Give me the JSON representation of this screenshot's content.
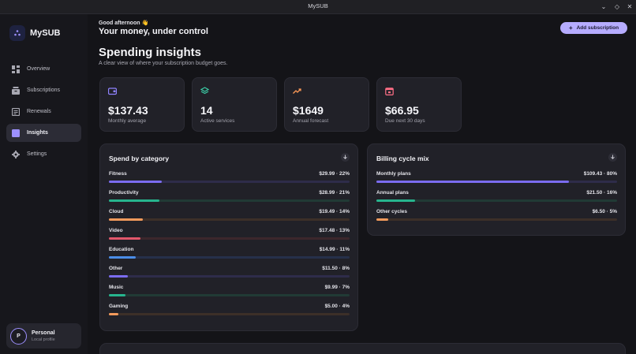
{
  "window": {
    "title": "MySUB"
  },
  "brand": {
    "name": "MySUB"
  },
  "nav": [
    {
      "label": "Overview",
      "icon": "grid-icon",
      "active": false
    },
    {
      "label": "Subscriptions",
      "icon": "box-icon",
      "active": false
    },
    {
      "label": "Renewals",
      "icon": "calendar-list-icon",
      "active": false
    },
    {
      "label": "Insights",
      "icon": "bar-chart-icon",
      "active": true
    },
    {
      "label": "Settings",
      "icon": "gear-icon",
      "active": false
    }
  ],
  "profile": {
    "initial": "P",
    "name": "Personal",
    "subtitle": "Local profile"
  },
  "header": {
    "greeting": "Good afternoon 👋",
    "tagline": "Your money, under control",
    "add_button": "Add subscription"
  },
  "page": {
    "title": "Spending insights",
    "subtitle": "A clear view of where your subscription budget goes."
  },
  "stats": [
    {
      "value": "$137.43",
      "label": "Monthly average",
      "icon": "wallet-icon",
      "color": "#8f82ff"
    },
    {
      "value": "14",
      "label": "Active services",
      "icon": "layers-icon",
      "color": "#3ccfa8"
    },
    {
      "value": "$1649",
      "label": "Annual forecast",
      "icon": "trend-up-icon",
      "color": "#ff9a57"
    },
    {
      "value": "$66.95",
      "label": "Due next 30 days",
      "icon": "calendar-icon",
      "color": "#ff6f86"
    }
  ],
  "category_card": {
    "title": "Spend by category",
    "rows": [
      {
        "name": "Fitness",
        "value": "$29.99 · 22%",
        "pct": 22,
        "color": "#7b6cf0",
        "track": "#2e2c4a"
      },
      {
        "name": "Productivity",
        "value": "$28.99 · 21%",
        "pct": 21,
        "color": "#27b58e",
        "track": "#213a35"
      },
      {
        "name": "Cloud",
        "value": "$19.49 · 14%",
        "pct": 14,
        "color": "#f39a5c",
        "track": "#3c2f28"
      },
      {
        "name": "Video",
        "value": "$17.48 · 13%",
        "pct": 13,
        "color": "#e2576b",
        "track": "#3c272c"
      },
      {
        "name": "Education",
        "value": "$14.99 · 11%",
        "pct": 11,
        "color": "#4b8de8",
        "track": "#26304a"
      },
      {
        "name": "Other",
        "value": "$11.50 · 8%",
        "pct": 8,
        "color": "#7b6cf0",
        "track": "#2e2c4a"
      },
      {
        "name": "Music",
        "value": "$9.99 · 7%",
        "pct": 7,
        "color": "#27b58e",
        "track": "#213a35"
      },
      {
        "name": "Gaming",
        "value": "$5.00 · 4%",
        "pct": 4,
        "color": "#f39a5c",
        "track": "#3c2f28"
      }
    ]
  },
  "billing_card": {
    "title": "Billing cycle mix",
    "rows": [
      {
        "name": "Monthly plans",
        "value": "$109.43 · 80%",
        "pct": 80,
        "color": "#7b6cf0",
        "track": "#2e2c4a"
      },
      {
        "name": "Annual plans",
        "value": "$21.50 · 16%",
        "pct": 16,
        "color": "#27b58e",
        "track": "#213a35"
      },
      {
        "name": "Other cycles",
        "value": "$6.50 · 5%",
        "pct": 5,
        "color": "#f39a5c",
        "track": "#3c2f28"
      }
    ]
  }
}
